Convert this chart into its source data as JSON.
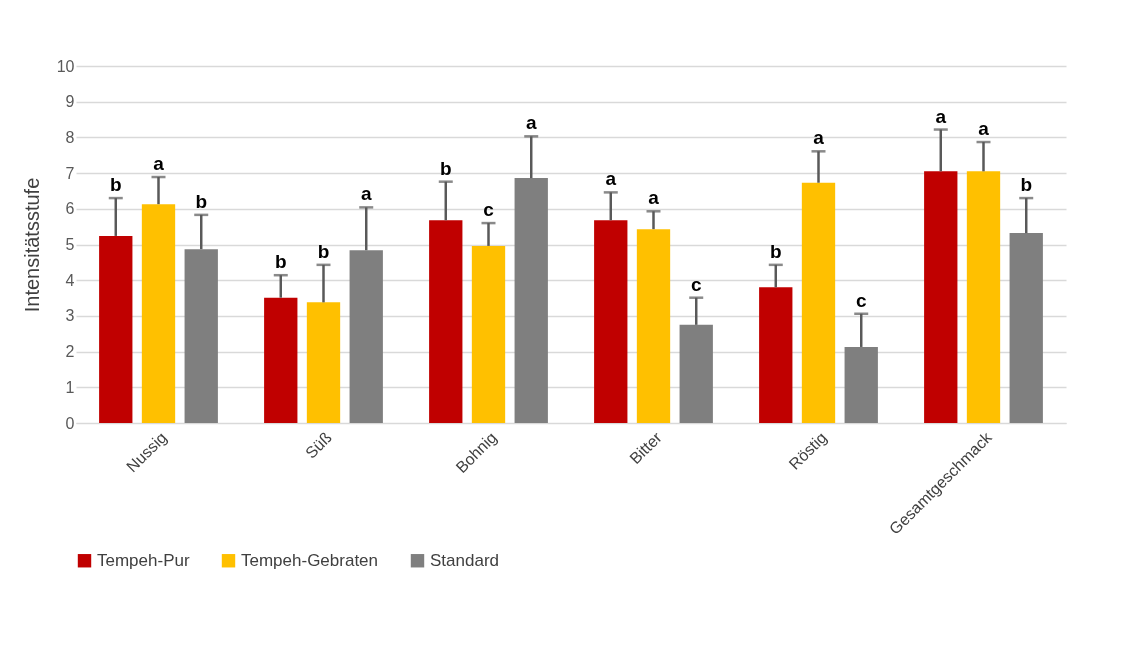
{
  "chart_data": {
    "type": "bar",
    "ylabel": "Intensitätsstufe",
    "categories": [
      "Nussig",
      "Süß",
      "Bohnig",
      "Bitter",
      "Röstig",
      "Gesamtgeschmack"
    ],
    "series": [
      {
        "name": "Tempeh-Pur",
        "color": "#c00000",
        "values": [
          5.24,
          3.51,
          5.68,
          5.68,
          3.8,
          7.05
        ],
        "errors": [
          [
            5.24,
            6.3
          ],
          [
            3.51,
            4.14
          ],
          [
            5.68,
            6.76
          ],
          [
            5.68,
            6.46
          ],
          [
            3.8,
            4.43
          ],
          [
            7.05,
            8.22
          ]
        ],
        "value_labels": [
          "b",
          "b",
          "b",
          "a",
          "b",
          "a"
        ]
      },
      {
        "name": "Tempeh-Gebraten",
        "color": "#ffc000",
        "values": [
          6.13,
          3.38,
          4.96,
          5.43,
          6.73,
          7.05
        ],
        "errors": [
          [
            6.13,
            6.89
          ],
          [
            3.38,
            4.43
          ],
          [
            4.96,
            5.6
          ],
          [
            5.43,
            5.93
          ],
          [
            6.73,
            7.61
          ],
          [
            7.05,
            7.87
          ]
        ],
        "value_labels": [
          "a",
          "b",
          "c",
          "a",
          "a",
          "a"
        ]
      },
      {
        "name": "Standard",
        "color": "#7f7f7f",
        "values": [
          4.87,
          4.84,
          6.86,
          2.75,
          2.13,
          5.32
        ],
        "errors": [
          [
            4.87,
            5.83
          ],
          [
            4.84,
            6.04
          ],
          [
            6.86,
            8.03
          ],
          [
            2.75,
            3.51
          ],
          [
            2.13,
            3.06
          ],
          [
            5.32,
            6.3
          ]
        ],
        "value_labels": [
          "b",
          "a",
          "a",
          "c",
          "c",
          "b"
        ]
      }
    ],
    "ylim": [
      0,
      10
    ],
    "yticks": [
      0,
      1,
      2,
      3,
      4,
      5,
      6,
      7,
      8,
      9,
      10
    ],
    "grid": "y",
    "legend": "bottom"
  }
}
